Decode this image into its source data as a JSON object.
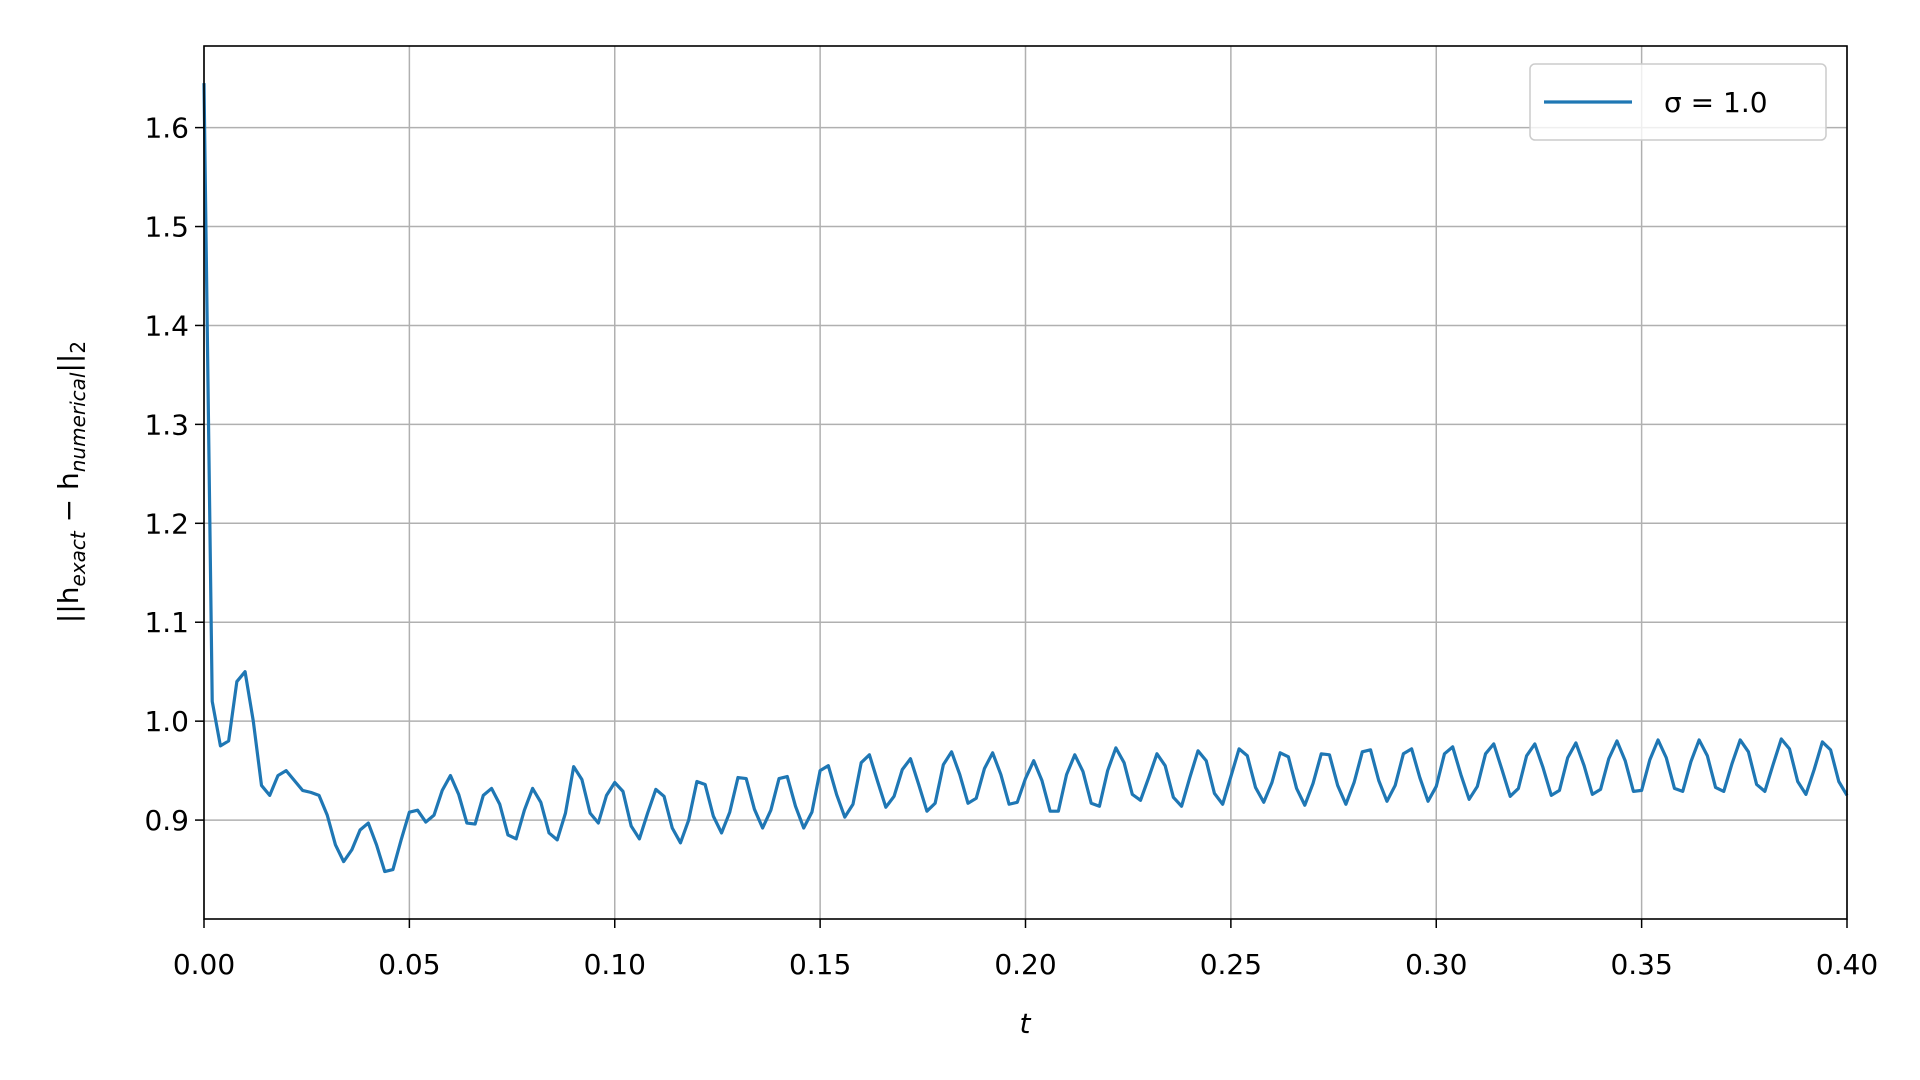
{
  "chart_data": {
    "type": "line",
    "x_label": "t",
    "y_label": [
      "||h",
      "exact",
      " − h",
      "numerical",
      "||",
      "2"
    ],
    "xlim": [
      0,
      0.4
    ],
    "ylim": [
      0.8,
      1.6825
    ],
    "xticks": [
      {
        "value": 0,
        "label": "0.00"
      },
      {
        "value": 0.05,
        "label": "0.05"
      },
      {
        "value": 0.1,
        "label": "0.10"
      },
      {
        "value": 0.15,
        "label": "0.15"
      },
      {
        "value": 0.2,
        "label": "0.20"
      },
      {
        "value": 0.25,
        "label": "0.25"
      },
      {
        "value": 0.3,
        "label": "0.30"
      },
      {
        "value": 0.35,
        "label": "0.35"
      },
      {
        "value": 0.4,
        "label": "0.40"
      }
    ],
    "yticks": [
      0.9,
      {
        "value": 1,
        "label": "1.0"
      },
      1.1,
      1.2,
      1.3,
      1.4,
      1.5,
      1.6
    ],
    "grid": true,
    "legend": "upper right",
    "x": [
      0,
      0.002,
      0.004,
      0.006,
      0.008,
      0.01,
      0.012,
      0.014,
      0.016,
      0.018,
      0.02,
      0.022,
      0.024,
      0.026,
      0.028,
      0.03,
      0.032,
      0.034,
      0.036,
      0.038,
      0.04,
      0.042,
      0.044,
      0.046,
      0.048,
      0.05,
      0.052,
      0.054,
      0.056,
      0.058,
      0.06,
      0.062,
      0.064,
      0.066,
      0.068,
      0.07,
      0.072,
      0.074,
      0.076,
      0.078,
      0.08,
      0.082,
      0.084,
      0.086,
      0.088,
      0.09,
      0.092,
      0.094,
      0.096,
      0.098,
      0.1,
      0.102,
      0.104,
      0.106,
      0.108,
      0.11,
      0.112,
      0.114,
      0.116,
      0.118,
      0.12,
      0.122,
      0.124,
      0.126,
      0.128,
      0.13,
      0.132,
      0.134,
      0.136,
      0.138,
      0.14,
      0.142,
      0.144,
      0.146,
      0.148,
      0.15,
      0.152,
      0.154,
      0.156,
      0.158,
      0.16,
      0.162,
      0.164,
      0.166,
      0.168,
      0.17,
      0.172,
      0.174,
      0.176,
      0.178,
      0.18,
      0.182,
      0.184,
      0.186,
      0.188,
      0.19,
      0.192,
      0.194,
      0.196,
      0.198,
      0.2,
      0.202,
      0.204,
      0.206,
      0.208,
      0.21,
      0.212,
      0.214,
      0.216,
      0.218,
      0.22,
      0.222,
      0.224,
      0.226,
      0.228,
      0.23,
      0.232,
      0.234,
      0.236,
      0.238,
      0.24,
      0.242,
      0.244,
      0.246,
      0.248,
      0.25,
      0.252,
      0.254,
      0.256,
      0.258,
      0.26,
      0.262,
      0.264,
      0.266,
      0.268,
      0.27,
      0.272,
      0.274,
      0.276,
      0.278,
      0.28,
      0.282,
      0.284,
      0.286,
      0.288,
      0.29,
      0.292,
      0.294,
      0.296,
      0.298,
      0.3,
      0.302,
      0.304,
      0.306,
      0.308,
      0.31,
      0.312,
      0.314,
      0.316,
      0.318,
      0.32,
      0.322,
      0.324,
      0.326,
      0.328,
      0.33,
      0.332,
      0.334,
      0.336,
      0.338,
      0.34,
      0.342,
      0.344,
      0.346,
      0.348,
      0.35,
      0.352,
      0.354,
      0.356,
      0.358,
      0.36,
      0.362,
      0.364,
      0.366,
      0.368,
      0.37,
      0.372,
      0.374,
      0.376,
      0.378,
      0.38,
      0.382,
      0.384,
      0.386,
      0.388,
      0.39,
      0.392,
      0.394,
      0.396,
      0.398,
      0.4
    ],
    "series": [
      {
        "name": "σ = 1.0",
        "color": "#1f77b4",
        "values": [
          1.645,
          1.02,
          0.975,
          0.98,
          1.04,
          1.05,
          1.0,
          0.935,
          0.925,
          0.945,
          0.95,
          0.94,
          0.93,
          0.928,
          0.925,
          0.905,
          0.875,
          0.858,
          0.87,
          0.89,
          0.897,
          0.875,
          0.848,
          0.85,
          0.88,
          0.908,
          0.91,
          0.898,
          0.905,
          0.93,
          0.945,
          0.926,
          0.897,
          0.896,
          0.925,
          0.932,
          0.916,
          0.885,
          0.881,
          0.91,
          0.932,
          0.918,
          0.887,
          0.88,
          0.907,
          0.954,
          0.941,
          0.907,
          0.897,
          0.925,
          0.938,
          0.929,
          0.894,
          0.881,
          0.907,
          0.931,
          0.924,
          0.892,
          0.877,
          0.9,
          0.939,
          0.936,
          0.904,
          0.887,
          0.908,
          0.943,
          0.942,
          0.911,
          0.892,
          0.91,
          0.942,
          0.944,
          0.914,
          0.892,
          0.908,
          0.95,
          0.955,
          0.926,
          0.903,
          0.916,
          0.958,
          0.966,
          0.939,
          0.913,
          0.924,
          0.951,
          0.962,
          0.936,
          0.909,
          0.917,
          0.956,
          0.969,
          0.946,
          0.917,
          0.922,
          0.952,
          0.968,
          0.946,
          0.916,
          0.918,
          0.942,
          0.96,
          0.94,
          0.909,
          0.909,
          0.946,
          0.966,
          0.949,
          0.917,
          0.914,
          0.95,
          0.973,
          0.958,
          0.926,
          0.92,
          0.943,
          0.967,
          0.955,
          0.923,
          0.914,
          0.943,
          0.97,
          0.96,
          0.927,
          0.916,
          0.944,
          0.972,
          0.965,
          0.933,
          0.918,
          0.938,
          0.968,
          0.964,
          0.932,
          0.915,
          0.937,
          0.967,
          0.966,
          0.935,
          0.916,
          0.938,
          0.969,
          0.971,
          0.94,
          0.919,
          0.935,
          0.967,
          0.972,
          0.943,
          0.919,
          0.934,
          0.967,
          0.974,
          0.946,
          0.921,
          0.934,
          0.967,
          0.977,
          0.951,
          0.924,
          0.932,
          0.965,
          0.977,
          0.953,
          0.925,
          0.93,
          0.963,
          0.978,
          0.955,
          0.926,
          0.931,
          0.962,
          0.98,
          0.96,
          0.929,
          0.93,
          0.961,
          0.981,
          0.963,
          0.932,
          0.929,
          0.959,
          0.981,
          0.965,
          0.933,
          0.929,
          0.957,
          0.981,
          0.969,
          0.936,
          0.929,
          0.956,
          0.982,
          0.972,
          0.939,
          0.926,
          0.951,
          0.979,
          0.971,
          0.939,
          0.925
        ]
      }
    ]
  }
}
